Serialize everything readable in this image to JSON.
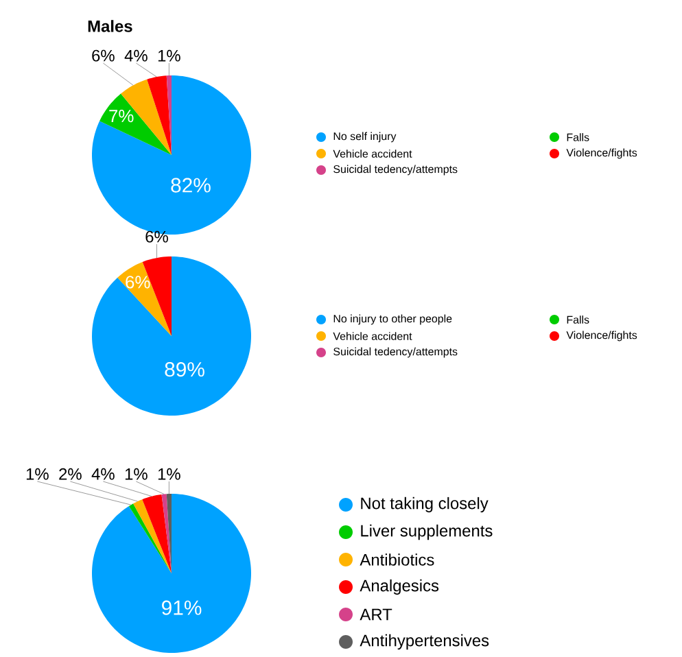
{
  "chart_data": [
    {
      "type": "pie",
      "title": "Males",
      "categories": [
        "No self injury",
        "Falls",
        "Vehicle accident",
        "Violence/fights",
        "Suicidal tedency/attempts"
      ],
      "values": [
        82,
        7,
        6,
        4,
        1
      ],
      "colors": [
        "#00a2ff",
        "#00cc00",
        "#ffb300",
        "#ff0000",
        "#d5428a"
      ],
      "value_labels": [
        "82%",
        "7%",
        "6%",
        "4%",
        "1%"
      ],
      "legend": "right"
    },
    {
      "type": "pie",
      "categories": [
        "No injury to other people",
        "Falls",
        "Vehicle accident",
        "Violence/fights",
        "Suicidal tedency/attempts"
      ],
      "values": [
        89,
        0,
        6,
        6,
        0
      ],
      "colors": [
        "#00a2ff",
        "#00cc00",
        "#ffb300",
        "#ff0000",
        "#d5428a"
      ],
      "value_labels": [
        "89%",
        null,
        "6%",
        "6%",
        null
      ],
      "legend": "right"
    },
    {
      "type": "pie",
      "categories": [
        "Not taking closely",
        "Liver supplements",
        "Antibiotics",
        "Analgesics",
        "ART",
        "Antihypertensives"
      ],
      "values": [
        91,
        1,
        2,
        4,
        1,
        1
      ],
      "colors": [
        "#00a2ff",
        "#00cc00",
        "#ffb300",
        "#ff0000",
        "#d5428a",
        "#5e5e5e"
      ],
      "value_labels": [
        "91%",
        "1%",
        "2%",
        "4%",
        "1%",
        "1%"
      ],
      "legend": "right"
    }
  ]
}
